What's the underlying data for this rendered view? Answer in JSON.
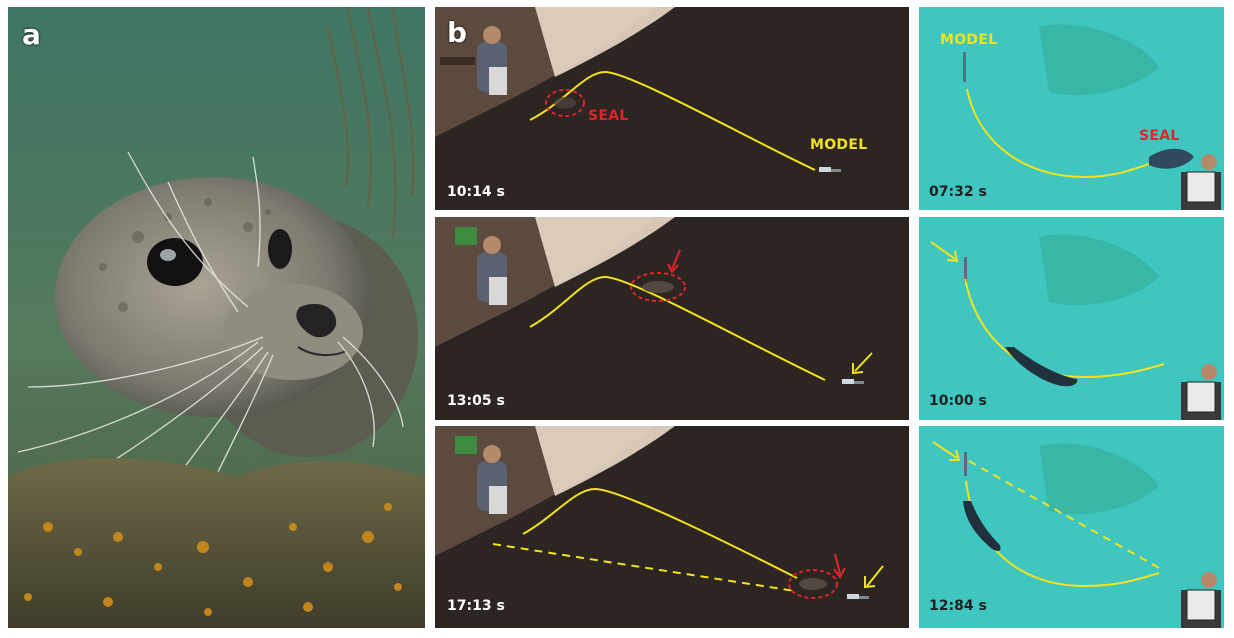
{
  "panel_a": {
    "letter": "a",
    "description_icon": "harbor-seal-photo"
  },
  "panel_b": {
    "letter": "b",
    "frames": [
      {
        "timestamp": "10:14 s",
        "seal_label": "SEAL",
        "model_label": "MODEL"
      },
      {
        "timestamp": "13:05 s"
      },
      {
        "timestamp": "17:13 s"
      }
    ]
  },
  "panel_c": {
    "frames": [
      {
        "timestamp": "07:32 s",
        "model_label": "MODEL",
        "seal_label": "SEAL"
      },
      {
        "timestamp": "10:00 s"
      },
      {
        "timestamp": "12:84 s"
      }
    ]
  },
  "colors": {
    "path_yellow": "#f2e31a",
    "seal_red": "#e0242a",
    "pool": "#39c7c2",
    "water_dark": "#2c2522"
  }
}
